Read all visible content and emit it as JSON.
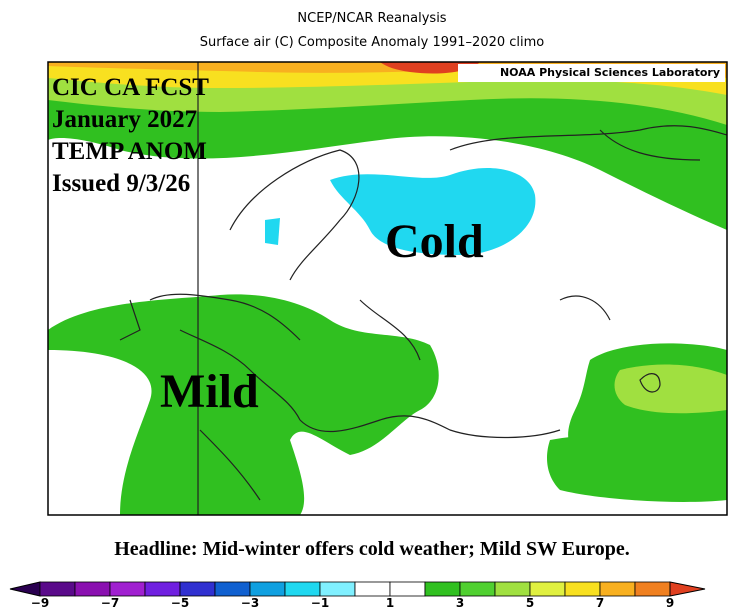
{
  "header": {
    "title": "NCEP/NCAR Reanalysis",
    "subtitle": "Surface air (C) Composite Anomaly 1991–2020 climo"
  },
  "map": {
    "credit": "NOAA Physical Sciences Laboratory",
    "overlay": [
      "CIC CA FCST",
      "January 2027",
      "TEMP ANOM",
      "Issued 9/3/26"
    ],
    "labels": [
      "Cold",
      "Mild"
    ]
  },
  "headline": "Headline: Mid-winter offers cold weather; Mild SW Europe.",
  "colorbar": {
    "labels": [
      "−9",
      "−7",
      "−5",
      "−3",
      "−1",
      "1",
      "3",
      "5",
      "7",
      "9"
    ],
    "colors": [
      "#2a0050",
      "#5a0a8a",
      "#8a10b0",
      "#a020d0",
      "#7020e0",
      "#3030d0",
      "#1060d0",
      "#10a0e0",
      "#20d8f0",
      "#80f0ff",
      "#ffffff",
      "#ffffff",
      "#30c020",
      "#50d030",
      "#a0e040",
      "#e0f040",
      "#f8e020",
      "#f8b020",
      "#f08020",
      "#e04020"
    ]
  }
}
